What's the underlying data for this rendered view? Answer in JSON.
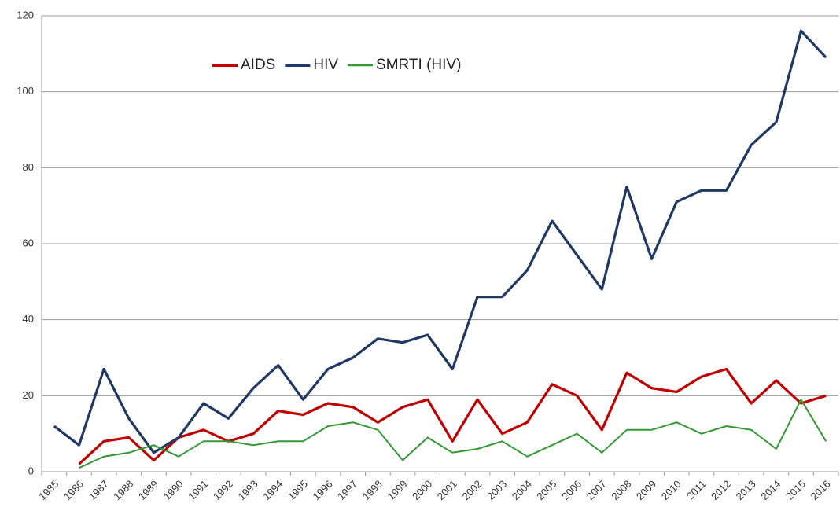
{
  "chart_data": {
    "type": "line",
    "categories": [
      "1985",
      "1986",
      "1987",
      "1988",
      "1989",
      "1990",
      "1991",
      "1992",
      "1993",
      "1994",
      "1995",
      "1996",
      "1997",
      "1998",
      "1999",
      "2000",
      "2001",
      "2002",
      "2003",
      "2004",
      "2005",
      "2006",
      "2007",
      "2008",
      "2009",
      "2010",
      "2011",
      "2012",
      "2013",
      "2014",
      "2015",
      "2016"
    ],
    "series": [
      {
        "name": "AIDS",
        "color": "#c00000",
        "values": [
          null,
          2,
          8,
          9,
          3,
          9,
          11,
          8,
          10,
          16,
          15,
          18,
          17,
          13,
          17,
          19,
          8,
          19,
          10,
          13,
          23,
          20,
          11,
          26,
          22,
          21,
          25,
          27,
          18,
          24,
          18,
          20
        ]
      },
      {
        "name": "HIV",
        "color": "#1f3864",
        "values": [
          12,
          7,
          27,
          14,
          5,
          9,
          18,
          14,
          22,
          28,
          19,
          27,
          30,
          35,
          34,
          36,
          27,
          46,
          46,
          53,
          66,
          57,
          48,
          75,
          56,
          71,
          74,
          74,
          86,
          92,
          116,
          109
        ]
      },
      {
        "name": "SMRTI (HIV)",
        "color": "#339933",
        "values": [
          null,
          1,
          4,
          5,
          7,
          4,
          8,
          8,
          7,
          8,
          8,
          12,
          13,
          11,
          3,
          9,
          5,
          6,
          8,
          4,
          7,
          10,
          5,
          11,
          11,
          13,
          10,
          12,
          11,
          6,
          19,
          8
        ]
      }
    ],
    "ylim": [
      0,
      120
    ],
    "yticks": [
      0,
      20,
      40,
      60,
      80,
      100,
      120
    ],
    "grid": true
  }
}
